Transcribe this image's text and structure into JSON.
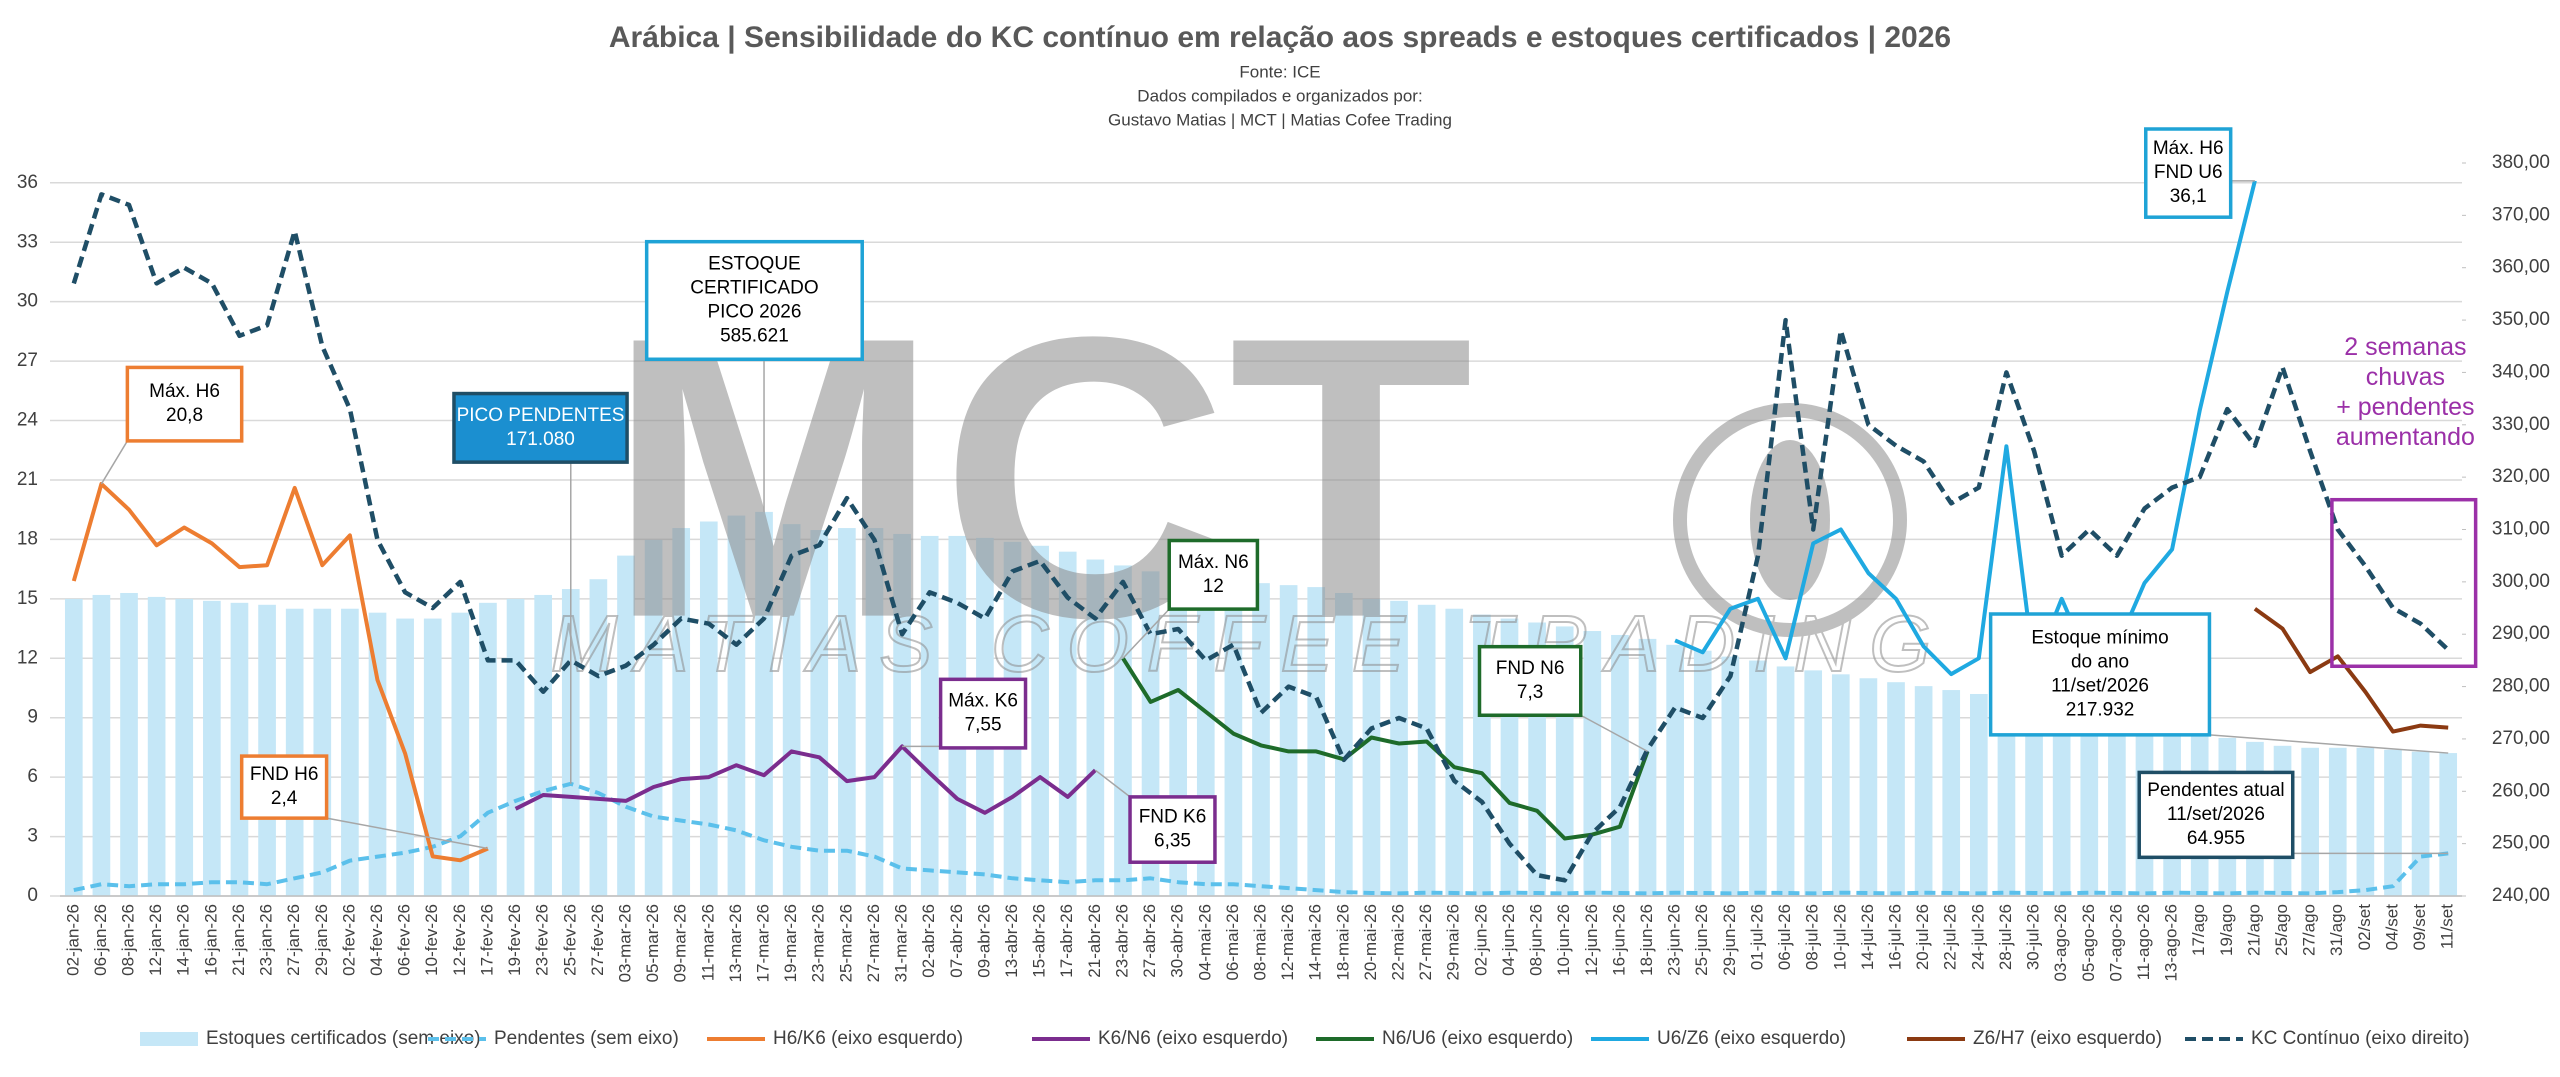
{
  "chart_data": {
    "type": "combo",
    "title": "Arábica | Sensibilidade do KC contínuo em relação aos spreads e estoques certificados | 2026",
    "subtitle": [
      "Fonte: ICE",
      "Dados compilados e organizados por:",
      "Gustavo Matias | MCT | Matias Cofee Trading"
    ],
    "watermark": [
      "MCT",
      "MATIAS COFFEE TRADING"
    ],
    "categories": [
      "02-jan-26",
      "06-jan-26",
      "08-jan-26",
      "12-jan-26",
      "14-jan-26",
      "16-jan-26",
      "21-jan-26",
      "23-jan-26",
      "27-jan-26",
      "29-jan-26",
      "02-fev-26",
      "04-fev-26",
      "06-fev-26",
      "10-fev-26",
      "12-fev-26",
      "17-fev-26",
      "19-fev-26",
      "23-fev-26",
      "25-fev-26",
      "27-fev-26",
      "03-mar-26",
      "05-mar-26",
      "09-mar-26",
      "11-mar-26",
      "13-mar-26",
      "17-mar-26",
      "19-mar-26",
      "23-mar-26",
      "25-mar-26",
      "27-mar-26",
      "31-mar-26",
      "02-abr-26",
      "07-abr-26",
      "09-abr-26",
      "13-abr-26",
      "15-abr-26",
      "17-abr-26",
      "21-abr-26",
      "23-abr-26",
      "27-abr-26",
      "30-abr-26",
      "04-mai-26",
      "06-mai-26",
      "08-mai-26",
      "12-mai-26",
      "14-mai-26",
      "18-mai-26",
      "20-mai-26",
      "22-mai-26",
      "27-mai-26",
      "29-mai-26",
      "02-jun-26",
      "04-jun-26",
      "08-jun-26",
      "10-jun-26",
      "12-jun-26",
      "16-jun-26",
      "18-jun-26",
      "23-jun-26",
      "25-jun-26",
      "29-jun-26",
      "01-jul-26",
      "06-jul-26",
      "08-jul-26",
      "10-jul-26",
      "14-jul-26",
      "16-jul-26",
      "20-jul-26",
      "22-jul-26",
      "24-jul-26",
      "28-jul-26",
      "30-jul-26",
      "03-ago-26",
      "05-ago-26",
      "07-ago-26",
      "11-ago-26",
      "13-ago-26",
      "17/ago",
      "19/ago",
      "21/ago",
      "25/ago",
      "27/ago",
      "31/ago",
      "02/set",
      "04/set",
      "09/set",
      "11/set"
    ],
    "series": [
      {
        "name": "Estoques certificados (sem eixo)",
        "kind": "bar",
        "axis": "none",
        "color": "#c5e7f7",
        "values": [
          453000,
          459000,
          462000,
          456000,
          453000,
          450000,
          447000,
          444000,
          438000,
          438000,
          438000,
          432000,
          423000,
          423000,
          432000,
          447000,
          453000,
          459000,
          468000,
          483000,
          519000,
          543000,
          561000,
          571000,
          580000,
          585621,
          567000,
          558000,
          561000,
          561000,
          552000,
          549000,
          549000,
          546000,
          540000,
          534000,
          525000,
          513000,
          504000,
          495000,
          489000,
          483000,
          480000,
          477000,
          474000,
          471000,
          462000,
          453000,
          450000,
          444000,
          438000,
          429000,
          423000,
          417000,
          411000,
          404000,
          398000,
          392000,
          383000,
          374000,
          365000,
          359000,
          350000,
          344000,
          338000,
          332000,
          326000,
          320000,
          314000,
          308000,
          302000,
          296000,
          287000,
          278000,
          272000,
          263000,
          257000,
          248000,
          241000,
          235000,
          229000,
          226000,
          226000,
          226000,
          223000,
          220000,
          217932
        ]
      },
      {
        "name": "Pendentes (sem eixo)",
        "kind": "line",
        "dash": true,
        "axis": "none",
        "color": "#5bc0eb",
        "values": [
          9000,
          18000,
          15000,
          18000,
          18000,
          21000,
          21000,
          18000,
          27000,
          36000,
          54000,
          60000,
          66000,
          75000,
          91000,
          127000,
          145000,
          160000,
          171080,
          157000,
          136000,
          121000,
          115000,
          109000,
          100000,
          85000,
          75000,
          69000,
          69000,
          60000,
          42000,
          39000,
          36000,
          33000,
          27000,
          24000,
          21000,
          24000,
          24000,
          27000,
          21000,
          18000,
          18000,
          15000,
          12000,
          9000,
          6000,
          4500,
          4000,
          5000,
          4500,
          4000,
          5000,
          4500,
          4000,
          5000,
          4500,
          4000,
          5000,
          4500,
          4000,
          5000,
          4500,
          4000,
          5000,
          4500,
          4000,
          5000,
          4500,
          4000,
          5000,
          4500,
          4000,
          5000,
          4500,
          4000,
          5000,
          4500,
          4000,
          5000,
          4500,
          4000,
          6000,
          9000,
          15000,
          60000,
          64955
        ]
      },
      {
        "name": "H6/K6 (eixo esquerdo)",
        "kind": "line",
        "axis": "y",
        "color": "#ed7d31",
        "values": [
          15.9,
          20.8,
          19.5,
          17.7,
          18.6,
          17.8,
          16.6,
          16.7,
          20.6,
          16.7,
          18.2,
          10.9,
          7.2,
          2.0,
          1.8,
          2.4,
          null,
          null,
          null,
          null,
          null,
          null,
          null,
          null,
          null,
          null,
          null,
          null,
          null,
          null,
          null,
          null,
          null,
          null,
          null,
          null,
          null,
          null,
          null,
          null,
          null,
          null,
          null,
          null,
          null,
          null,
          null,
          null,
          null,
          null,
          null,
          null,
          null,
          null,
          null,
          null,
          null,
          null,
          null,
          null,
          null,
          null,
          null,
          null,
          null,
          null,
          null,
          null,
          null,
          null,
          null,
          null,
          null,
          null,
          null,
          null,
          null,
          null,
          null,
          null,
          null,
          null,
          null,
          null,
          null,
          null,
          null
        ]
      },
      {
        "name": "K6/N6 (eixo esquerdo)",
        "kind": "line",
        "axis": "y",
        "color": "#7b2d8e",
        "values": [
          null,
          null,
          null,
          null,
          null,
          null,
          null,
          null,
          null,
          null,
          null,
          null,
          null,
          null,
          null,
          null,
          4.4,
          5.1,
          5.0,
          4.9,
          4.8,
          5.5,
          5.9,
          6.0,
          6.6,
          6.1,
          7.3,
          7.0,
          5.8,
          6.0,
          7.55,
          6.2,
          4.9,
          4.2,
          5.0,
          6.0,
          5.0,
          6.35,
          null,
          null,
          null,
          null,
          null,
          null,
          null,
          null,
          null,
          null,
          null,
          null,
          null,
          null,
          null,
          null,
          null,
          null,
          null,
          null,
          null,
          null,
          null,
          null,
          null,
          null,
          null,
          null,
          null,
          null,
          null,
          null,
          null,
          null,
          null,
          null,
          null,
          null,
          null,
          null,
          null,
          null,
          null,
          null,
          null,
          null,
          null,
          null,
          null
        ]
      },
      {
        "name": "N6/U6 (eixo esquerdo)",
        "kind": "line",
        "axis": "y",
        "color": "#1e6b2a",
        "values": [
          null,
          null,
          null,
          null,
          null,
          null,
          null,
          null,
          null,
          null,
          null,
          null,
          null,
          null,
          null,
          null,
          null,
          null,
          null,
          null,
          null,
          null,
          null,
          null,
          null,
          null,
          null,
          null,
          null,
          null,
          null,
          null,
          null,
          null,
          null,
          null,
          null,
          null,
          12,
          9.8,
          10.4,
          9.3,
          8.2,
          7.6,
          7.3,
          7.3,
          6.9,
          8.0,
          7.7,
          7.8,
          6.5,
          6.2,
          4.7,
          4.3,
          2.9,
          3.1,
          3.5,
          7.3,
          null,
          null,
          null,
          null,
          null,
          null,
          null,
          null,
          null,
          null,
          null,
          null,
          null,
          null,
          null,
          null,
          null,
          null,
          null,
          null,
          null,
          null,
          null,
          null,
          null,
          null,
          null,
          null,
          null
        ]
      },
      {
        "name": "U6/Z6 (eixo esquerdo)",
        "kind": "line",
        "axis": "y",
        "color": "#1fa9e1",
        "values": [
          null,
          null,
          null,
          null,
          null,
          null,
          null,
          null,
          null,
          null,
          null,
          null,
          null,
          null,
          null,
          null,
          null,
          null,
          null,
          null,
          null,
          null,
          null,
          null,
          null,
          null,
          null,
          null,
          null,
          null,
          null,
          null,
          null,
          null,
          null,
          null,
          null,
          null,
          null,
          null,
          null,
          null,
          null,
          null,
          null,
          null,
          null,
          null,
          null,
          null,
          null,
          null,
          null,
          null,
          null,
          null,
          null,
          null,
          12.9,
          12.3,
          14.5,
          15.0,
          12.0,
          17.8,
          18.5,
          16.3,
          15.0,
          12.6,
          11.2,
          12.0,
          22.7,
          11.5,
          15.0,
          11.8,
          12.6,
          15.8,
          17.5,
          24.5,
          30.5,
          36.1,
          null,
          null,
          null,
          null,
          null,
          null,
          null
        ]
      },
      {
        "name": "Z6/H7 (eixo esquerdo)",
        "kind": "line",
        "axis": "y",
        "color": "#8b3a12",
        "values": [
          null,
          null,
          null,
          null,
          null,
          null,
          null,
          null,
          null,
          null,
          null,
          null,
          null,
          null,
          null,
          null,
          null,
          null,
          null,
          null,
          null,
          null,
          null,
          null,
          null,
          null,
          null,
          null,
          null,
          null,
          null,
          null,
          null,
          null,
          null,
          null,
          null,
          null,
          null,
          null,
          null,
          null,
          null,
          null,
          null,
          null,
          null,
          null,
          null,
          null,
          null,
          null,
          null,
          null,
          null,
          null,
          null,
          null,
          null,
          null,
          null,
          null,
          null,
          null,
          null,
          null,
          null,
          null,
          null,
          null,
          null,
          null,
          null,
          null,
          null,
          null,
          null,
          null,
          null,
          14.5,
          13.5,
          11.3,
          12.1,
          10.3,
          8.3,
          8.6,
          8.5
        ]
      },
      {
        "name": "KC Contínuo (eixo direito)",
        "kind": "line",
        "dash": true,
        "axis": "y2",
        "color": "#1f4e66",
        "values": [
          357,
          374,
          372,
          357,
          360,
          357,
          347,
          349,
          367,
          345,
          333,
          308,
          298,
          295,
          300,
          285,
          285,
          279,
          285,
          282,
          284,
          288,
          293,
          292,
          288,
          293,
          305,
          307,
          316,
          308,
          290,
          298,
          296,
          293,
          302,
          304,
          297,
          293,
          300,
          290,
          291,
          285,
          288,
          275,
          280,
          278,
          266,
          272,
          274,
          272,
          262,
          258,
          250,
          244,
          243,
          252,
          257,
          268,
          276,
          274,
          282,
          305,
          350,
          310,
          348,
          330,
          326,
          323,
          315,
          318,
          340,
          325,
          305,
          310,
          305,
          314,
          318,
          320,
          333,
          326,
          341,
          325,
          310,
          303,
          295,
          292,
          287
        ]
      }
    ],
    "ylim": [
      0,
      37
    ],
    "yticks": [
      0,
      3,
      6,
      9,
      12,
      15,
      18,
      21,
      24,
      27,
      30,
      33,
      36
    ],
    "y2lim": [
      240,
      380
    ],
    "y2ticks": [
      {
        "value": 240,
        "label": "240,00"
      },
      {
        "value": 250,
        "label": "250,00"
      },
      {
        "value": 260,
        "label": "260,00"
      },
      {
        "value": 270,
        "label": "270,00"
      },
      {
        "value": 280,
        "label": "280,00"
      },
      {
        "value": 290,
        "label": "290,00"
      },
      {
        "value": 300,
        "label": "300,00"
      },
      {
        "value": 310,
        "label": "310,00"
      },
      {
        "value": 320,
        "label": "320,00"
      },
      {
        "value": 330,
        "label": "330,00"
      },
      {
        "value": 340,
        "label": "340,00"
      },
      {
        "value": 350,
        "label": "350,00"
      },
      {
        "value": 360,
        "label": "360,00"
      },
      {
        "value": 370,
        "label": "370,00"
      },
      {
        "value": 380,
        "label": "380,00"
      }
    ],
    "grid": true,
    "legend": "bottom",
    "annotations": [
      {
        "lines": [
          "Máx. H6",
          "20,8"
        ],
        "color": "#ed7d31"
      },
      {
        "lines": [
          "PICO PENDENTES",
          "171.080"
        ],
        "color": "#1f4e66",
        "fill": "#1b8fd0"
      },
      {
        "lines": [
          "ESTOQUE",
          "CERTIFICADO",
          "PICO 2026",
          "585.621"
        ],
        "color": "#1fa3d6"
      },
      {
        "lines": [
          "FND H6",
          "2,4"
        ],
        "color": "#ed7d31"
      },
      {
        "lines": [
          "Máx. K6",
          "7,55"
        ],
        "color": "#7b2d8e"
      },
      {
        "lines": [
          "FND K6",
          "6,35"
        ],
        "color": "#7b2d8e"
      },
      {
        "lines": [
          "Máx. N6",
          "12"
        ],
        "color": "#1e6b2a"
      },
      {
        "lines": [
          "FND N6",
          "7,3"
        ],
        "color": "#1e6b2a"
      },
      {
        "lines": [
          "Máx. H6",
          "FND U6",
          "36,1"
        ],
        "color": "#1fa3d6"
      },
      {
        "lines": [
          "Estoque mínimo",
          "do ano",
          "11/set/2026",
          "217.932"
        ],
        "color": "#1fa3d6"
      },
      {
        "lines": [
          "Pendentes atual",
          "11/set/2026",
          "64.955"
        ],
        "color": "#1f4e66"
      },
      {
        "lines": [
          "2 semanas",
          "chuvas",
          "+ pendentes",
          "aumentando"
        ],
        "color": "#9b30a8"
      }
    ]
  }
}
